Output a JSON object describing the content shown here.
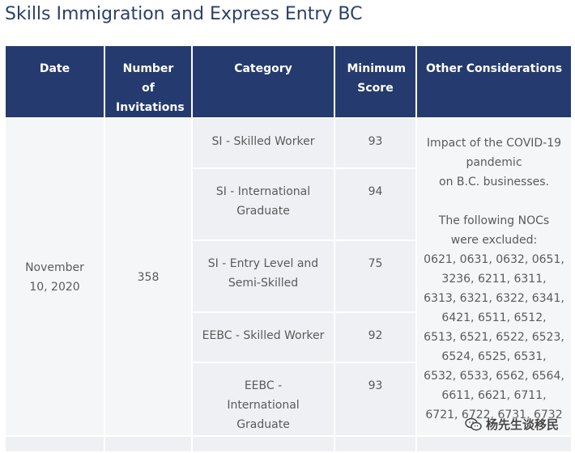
{
  "page_title": "Skills Immigration and Express Entry BC",
  "table": {
    "headers": {
      "date": "Date",
      "invitations": "Number of Invitations",
      "category": "Category",
      "min_score": "Minimum Score",
      "other": "Other Considerations"
    },
    "date": "November 10, 2020",
    "invitations": "358",
    "rows": [
      {
        "category": "SI - Skilled Worker",
        "score": "93"
      },
      {
        "category": "SI - International Graduate",
        "score": "94"
      },
      {
        "category": "SI - Entry Level and Semi-Skilled",
        "score": "75"
      },
      {
        "category": "EEBC - Skilled Worker",
        "score": "92"
      },
      {
        "category": "EEBC - International Graduate",
        "score": "93"
      }
    ],
    "other_considerations": "Impact of the COVID-19\npandemic\non B.C. businesses.\n\nThe following NOCs\nwere excluded:\n0621, 0631, 0632, 0651,\n3236, 6211, 6311,\n6313, 6321, 6322, 6341,\n6421, 6511, 6512,\n6513, 6521, 6522, 6523,\n6524, 6525, 6531,\n6532, 6533, 6562, 6564,\n6611, 6621, 6711,\n6721, 6722, 6731, 6732"
  },
  "watermark": {
    "text": "杨先生谈移民",
    "icon": "wechat-icon"
  }
}
